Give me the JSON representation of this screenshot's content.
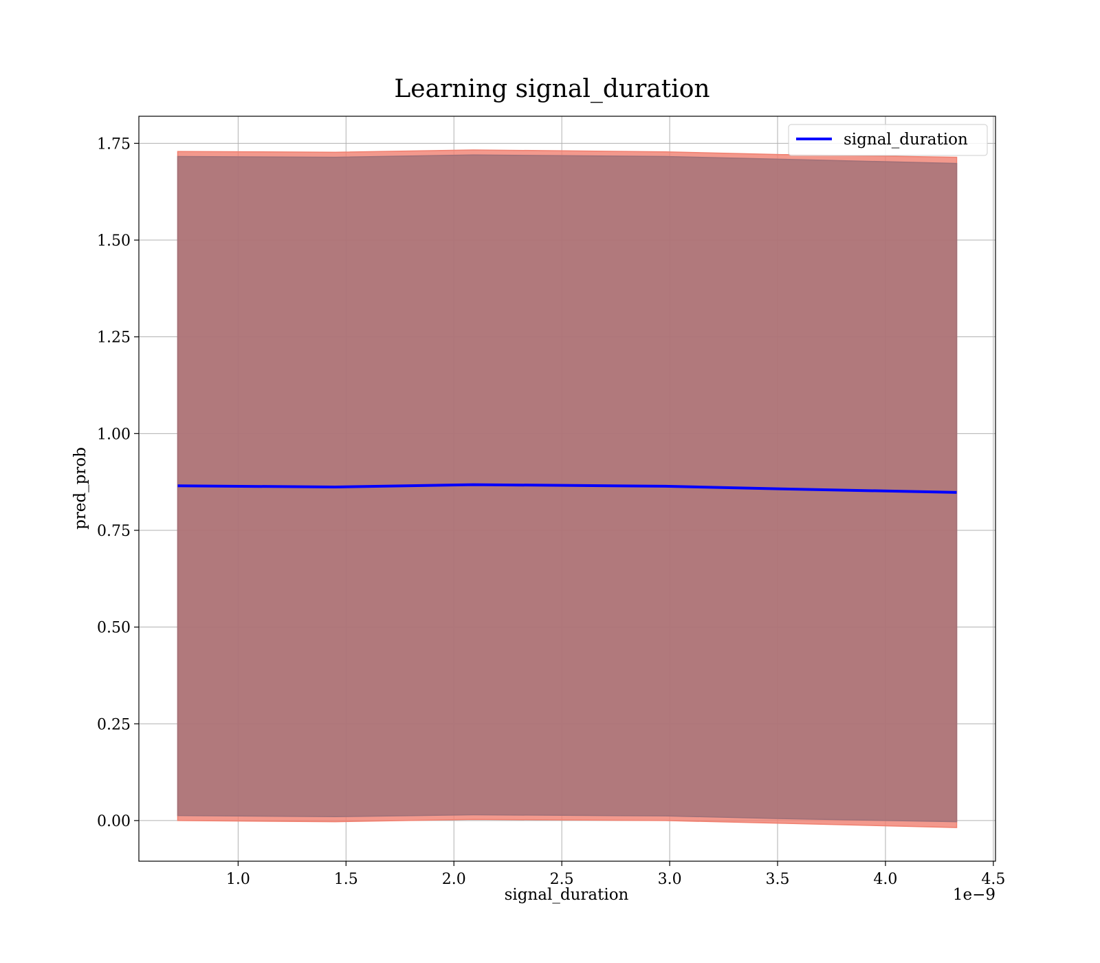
{
  "chart_data": {
    "type": "line",
    "title": "Learning signal_duration",
    "xlabel": "signal_duration",
    "ylabel": "pred_prob",
    "x_offset_label": "1e−9",
    "xlim": [
      0.54,
      4.51
    ],
    "ylim": [
      -0.105,
      1.82
    ],
    "x_ticks": [
      1.0,
      1.5,
      2.0,
      2.5,
      3.0,
      3.5,
      4.0,
      4.5
    ],
    "x_tick_labels": [
      "1.0",
      "1.5",
      "2.0",
      "2.5",
      "3.0",
      "3.5",
      "4.0",
      "4.5"
    ],
    "y_ticks": [
      0.0,
      0.25,
      0.5,
      0.75,
      1.0,
      1.25,
      1.5,
      1.75
    ],
    "y_tick_labels": [
      "0.00",
      "0.25",
      "0.50",
      "0.75",
      "1.00",
      "1.25",
      "1.50",
      "1.75"
    ],
    "grid": true,
    "legend": {
      "position": "top-right"
    },
    "x": [
      0.72,
      1.45,
      2.09,
      2.98,
      3.52,
      4.33
    ],
    "series": [
      {
        "name": "signal_duration",
        "color": "#0000ff",
        "values": [
          0.865,
          0.862,
          0.868,
          0.864,
          0.857,
          0.848
        ]
      }
    ],
    "bands": [
      {
        "color": "#f08070",
        "lower": [
          0.0,
          -0.003,
          0.003,
          0.0,
          -0.007,
          -0.018
        ],
        "upper": [
          1.729,
          1.727,
          1.733,
          1.728,
          1.721,
          1.714
        ]
      },
      {
        "color": "#a07078",
        "lower": [
          0.013,
          0.01,
          0.015,
          0.012,
          0.005,
          -0.003
        ],
        "upper": [
          1.716,
          1.714,
          1.72,
          1.716,
          1.709,
          1.698
        ]
      }
    ]
  }
}
